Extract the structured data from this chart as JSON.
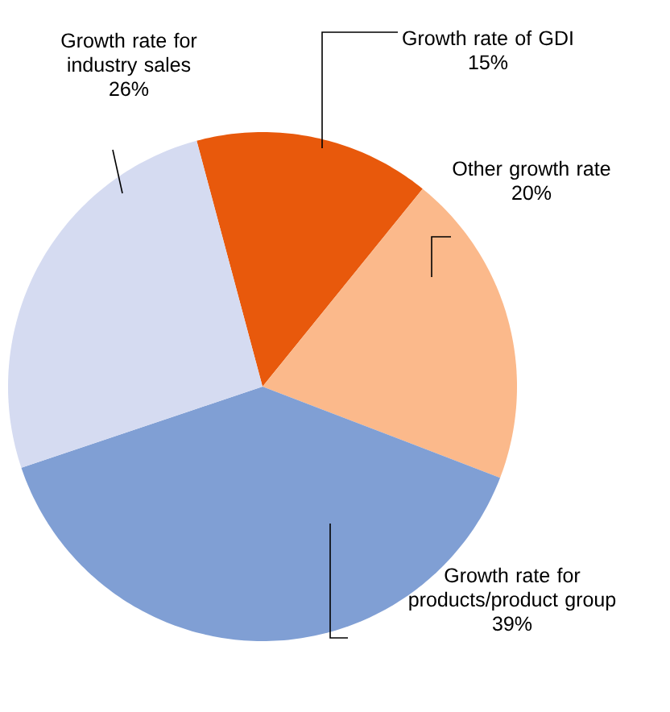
{
  "chart_data": {
    "type": "pie",
    "categories": [
      "Growth rate of GDI",
      "Other growth rate",
      "Growth rate for products/product group",
      "Growth rate for industry sales"
    ],
    "values": [
      15,
      20,
      39,
      26
    ],
    "value_labels": [
      "15%",
      "20%",
      "39%",
      "26%"
    ],
    "colors": [
      "#e8590c",
      "#fbb98b",
      "#809fd4",
      "#d5dbf1"
    ]
  }
}
